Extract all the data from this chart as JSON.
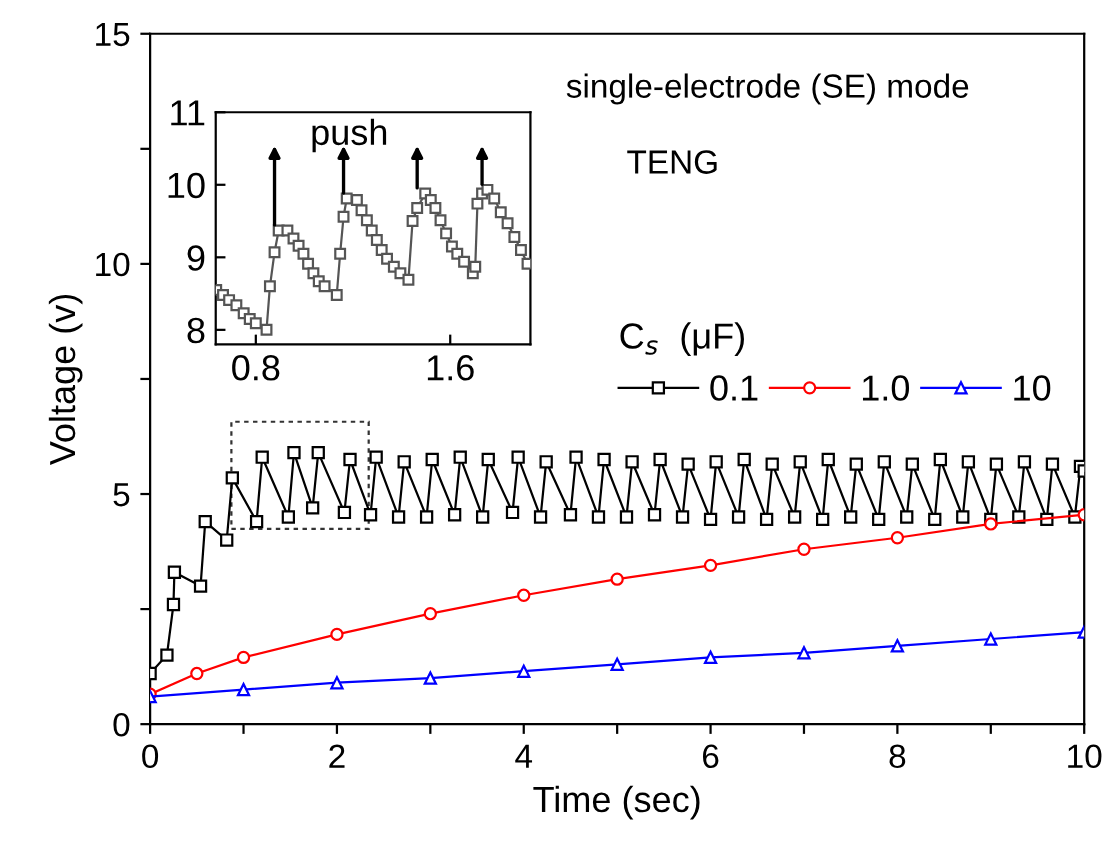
{
  "chart_data": [
    {
      "type": "line",
      "xlabel": "Time (sec)",
      "ylabel": "Voltage (v)",
      "legend_title": "C$_{s}$  (μF)",
      "legend": "right",
      "grid": false,
      "line_style": "solid",
      "xlim": [
        0,
        10
      ],
      "xticks": [
        0,
        {
          "value": 1,
          "label": null
        },
        2,
        {
          "value": 3,
          "label": null
        },
        4,
        {
          "value": 5,
          "label": null
        },
        6,
        {
          "value": 7,
          "label": null
        },
        8,
        {
          "value": 9,
          "label": null
        },
        10
      ],
      "ylim": [
        0,
        15
      ],
      "yticks": [
        0,
        {
          "value": 2.5,
          "label": null
        },
        5,
        {
          "value": 7.5,
          "label": null
        },
        10,
        {
          "value": 12.5,
          "label": null
        },
        15
      ],
      "annotations": [
        "single-electrode (SE) mode",
        "TENG"
      ],
      "series": [
        {
          "name": "0.1",
          "color": "#000000",
          "marker": "square",
          "x": [
            0,
            0.18,
            0.25,
            0.26,
            0.54,
            0.59,
            0.82,
            0.88,
            1.14,
            1.2,
            1.48,
            1.54,
            1.74,
            1.8,
            2.08,
            2.14,
            2.36,
            2.42,
            2.66,
            2.72,
            2.96,
            3.02,
            3.26,
            3.32,
            3.56,
            3.62,
            3.88,
            3.94,
            4.18,
            4.24,
            4.5,
            4.56,
            4.8,
            4.86,
            5.1,
            5.16,
            5.4,
            5.46,
            5.7,
            5.76,
            6.0,
            6.06,
            6.3,
            6.36,
            6.6,
            6.66,
            6.9,
            6.96,
            7.2,
            7.26,
            7.5,
            7.56,
            7.8,
            7.86,
            8.1,
            8.16,
            8.4,
            8.46,
            8.7,
            8.76,
            9.0,
            9.06,
            9.3,
            9.36,
            9.6,
            9.66,
            9.9,
            9.96,
            10
          ],
          "values": [
            1.1,
            1.5,
            2.6,
            3.3,
            3.0,
            4.4,
            4.0,
            5.35,
            4.4,
            5.8,
            4.5,
            5.9,
            4.7,
            5.9,
            4.6,
            5.75,
            4.55,
            5.8,
            4.5,
            5.7,
            4.5,
            5.75,
            4.55,
            5.8,
            4.5,
            5.75,
            4.6,
            5.8,
            4.5,
            5.7,
            4.55,
            5.8,
            4.5,
            5.75,
            4.5,
            5.7,
            4.55,
            5.75,
            4.5,
            5.65,
            4.45,
            5.7,
            4.5,
            5.75,
            4.45,
            5.65,
            4.5,
            5.7,
            4.45,
            5.75,
            4.5,
            5.65,
            4.45,
            5.7,
            4.5,
            5.65,
            4.45,
            5.75,
            4.5,
            5.7,
            4.45,
            5.65,
            4.5,
            5.7,
            4.45,
            5.65,
            4.5,
            5.6,
            5.5
          ]
        },
        {
          "name": "1.0",
          "color": "#ff0000",
          "marker": "circle",
          "x": [
            0,
            0.5,
            1,
            2,
            3,
            4,
            5,
            6,
            7,
            8,
            9,
            10
          ],
          "values": [
            0.65,
            1.1,
            1.45,
            1.95,
            2.4,
            2.8,
            3.15,
            3.45,
            3.8,
            4.05,
            4.35,
            4.55
          ]
        },
        {
          "name": "10",
          "color": "#0000ff",
          "marker": "triangle",
          "x": [
            0,
            1,
            2,
            3,
            4,
            5,
            6,
            7,
            8,
            9,
            10
          ],
          "values": [
            0.6,
            0.75,
            0.9,
            1.0,
            1.15,
            1.3,
            1.45,
            1.55,
            1.7,
            1.85,
            2.0
          ]
        }
      ]
    },
    {
      "type": "line",
      "grid": false,
      "line_style": "solid",
      "marker": "square",
      "annotations": [
        "push"
      ],
      "xlim": [
        0.635,
        1.93
      ],
      "xticks": [
        0.8,
        1.6
      ],
      "ylim": [
        7.8,
        11
      ],
      "yticks": [
        8,
        9,
        10,
        11
      ],
      "series": [
        {
          "color": "#555555",
          "x": [
            0.637,
            0.665,
            0.69,
            0.72,
            0.75,
            0.775,
            0.8,
            0.844,
            0.858,
            0.877,
            0.894,
            0.93,
            0.955,
            0.976,
            0.996,
            1.015,
            1.037,
            1.059,
            1.083,
            1.133,
            1.147,
            1.161,
            1.174,
            1.216,
            1.235,
            1.257,
            1.277,
            1.298,
            1.318,
            1.34,
            1.368,
            1.395,
            1.428,
            1.445,
            1.464,
            1.497,
            1.52,
            1.539,
            1.56,
            1.583,
            1.607,
            1.629,
            1.657,
            1.693,
            1.703,
            1.712,
            1.731,
            1.753,
            1.781,
            1.808,
            1.836,
            1.864,
            1.891,
            1.918
          ],
          "values": [
            8.55,
            8.48,
            8.41,
            8.34,
            8.23,
            8.15,
            8.09,
            8.0,
            8.6,
            9.07,
            9.37,
            9.37,
            9.26,
            9.16,
            9.05,
            8.91,
            8.78,
            8.67,
            8.6,
            8.48,
            9.05,
            9.56,
            9.81,
            9.79,
            9.65,
            9.51,
            9.37,
            9.24,
            9.1,
            8.98,
            8.87,
            8.78,
            8.69,
            9.5,
            9.68,
            9.88,
            9.79,
            9.68,
            9.51,
            9.33,
            9.15,
            9.05,
            8.94,
            8.78,
            8.87,
            9.74,
            9.88,
            9.93,
            9.81,
            9.62,
            9.47,
            9.28,
            9.1,
            8.91
          ]
        }
      ]
    }
  ]
}
